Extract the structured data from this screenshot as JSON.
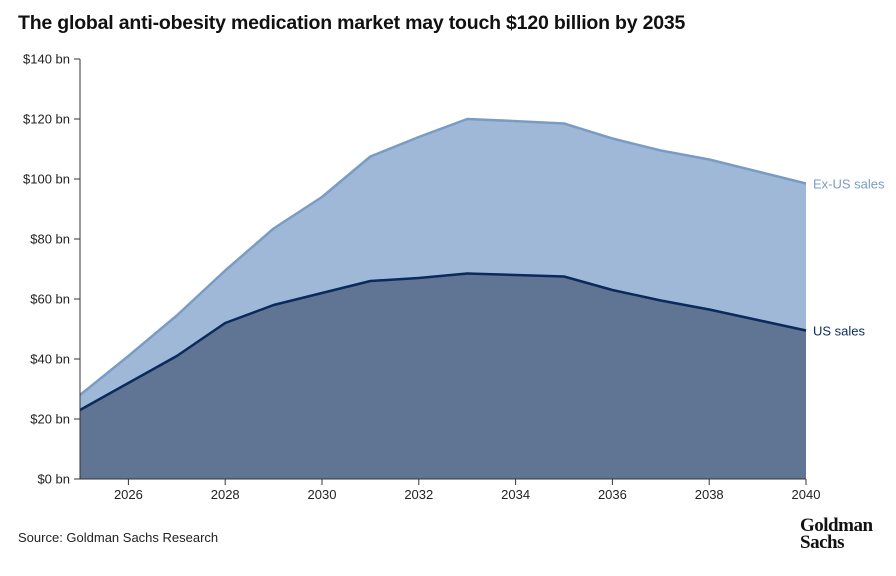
{
  "chart_data": {
    "type": "area",
    "title": "The global anti-obesity medication market may touch $120 billion by 2035",
    "x": [
      2025,
      2026,
      2027,
      2028,
      2029,
      2030,
      2031,
      2032,
      2033,
      2034,
      2035,
      2036,
      2037,
      2038,
      2039,
      2040
    ],
    "series": [
      {
        "name": "US sales",
        "values": [
          23,
          32,
          41,
          52,
          58,
          62,
          66,
          67,
          68.5,
          68,
          67.5,
          63,
          59.5,
          56.5,
          53,
          49.5
        ],
        "color": "#0b2a5c",
        "fill": "#607494"
      },
      {
        "name": "Ex-US sales",
        "values": [
          28,
          41,
          54.5,
          69.5,
          83.5,
          94,
          107.5,
          114,
          120,
          119.3,
          118.5,
          113.5,
          109.5,
          106.5,
          102.5,
          98.5
        ],
        "color": "#7a9cc4",
        "fill": "#9fb8d8"
      }
    ],
    "stacked_display": "cumulative",
    "ylim": [
      0,
      140
    ],
    "xlim": [
      2025,
      2040
    ],
    "yticks": [
      0,
      20,
      40,
      60,
      80,
      100,
      120,
      140
    ],
    "ytick_labels": [
      "$0 bn",
      "$20 bn",
      "$40 bn",
      "$60 bn",
      "$80 bn",
      "$100 bn",
      "$120 bn",
      "$140 bn"
    ],
    "xticks": [
      2026,
      2028,
      2030,
      2032,
      2034,
      2036,
      2038,
      2040
    ],
    "xtick_labels": [
      "2026",
      "2028",
      "2030",
      "2032",
      "2034",
      "2036",
      "2038",
      "2040"
    ],
    "xlabel": "",
    "ylabel": "",
    "grid": false,
    "legend": "direct labels at right end of lines"
  },
  "source": "Source: Goldman Sachs Research",
  "logo": {
    "line1": "Goldman",
    "line2": "Sachs"
  }
}
